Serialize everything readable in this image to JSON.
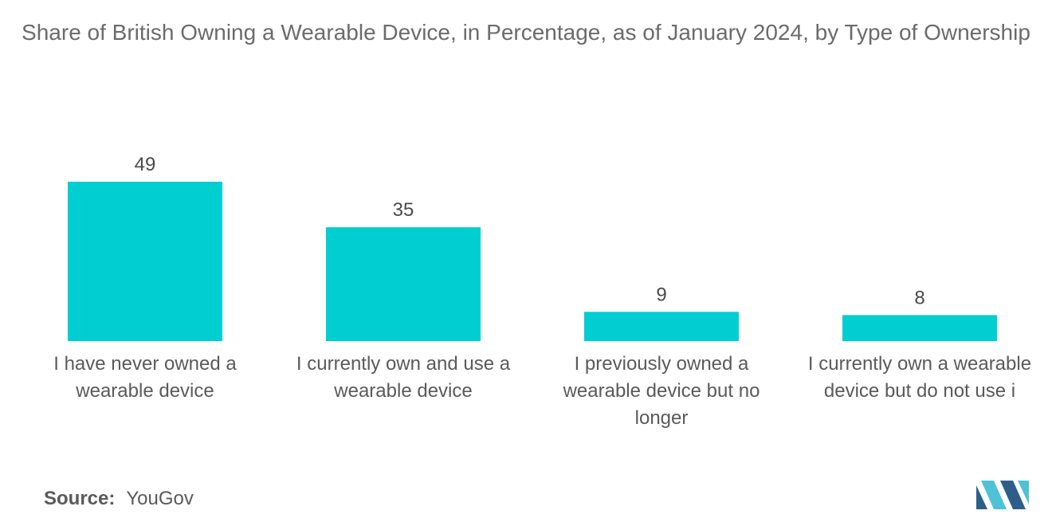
{
  "chart_data": {
    "type": "bar",
    "title": "Share of British Owning a Wearable Device, in Percentage, as of January 2024, by Type of Ownership",
    "categories": [
      [
        "I have never owned a",
        "wearable device"
      ],
      [
        "I currently own and use a",
        "wearable device"
      ],
      [
        "I previously owned a",
        "wearable device but no",
        "longer"
      ],
      [
        "I currently own a wearable",
        "device but do not use i"
      ]
    ],
    "values": [
      49,
      35,
      9,
      8
    ],
    "value_labels": [
      "49",
      "35",
      "9",
      "8"
    ],
    "ylim": [
      0,
      49
    ],
    "grid": false,
    "legend": "none",
    "bar_color": "#00ced1"
  },
  "footer": {
    "source_label": "Source:",
    "source_value": "YouGov"
  },
  "colors": {
    "logo_dark": "#2e5f8a",
    "logo_light": "#4fc3d6"
  }
}
